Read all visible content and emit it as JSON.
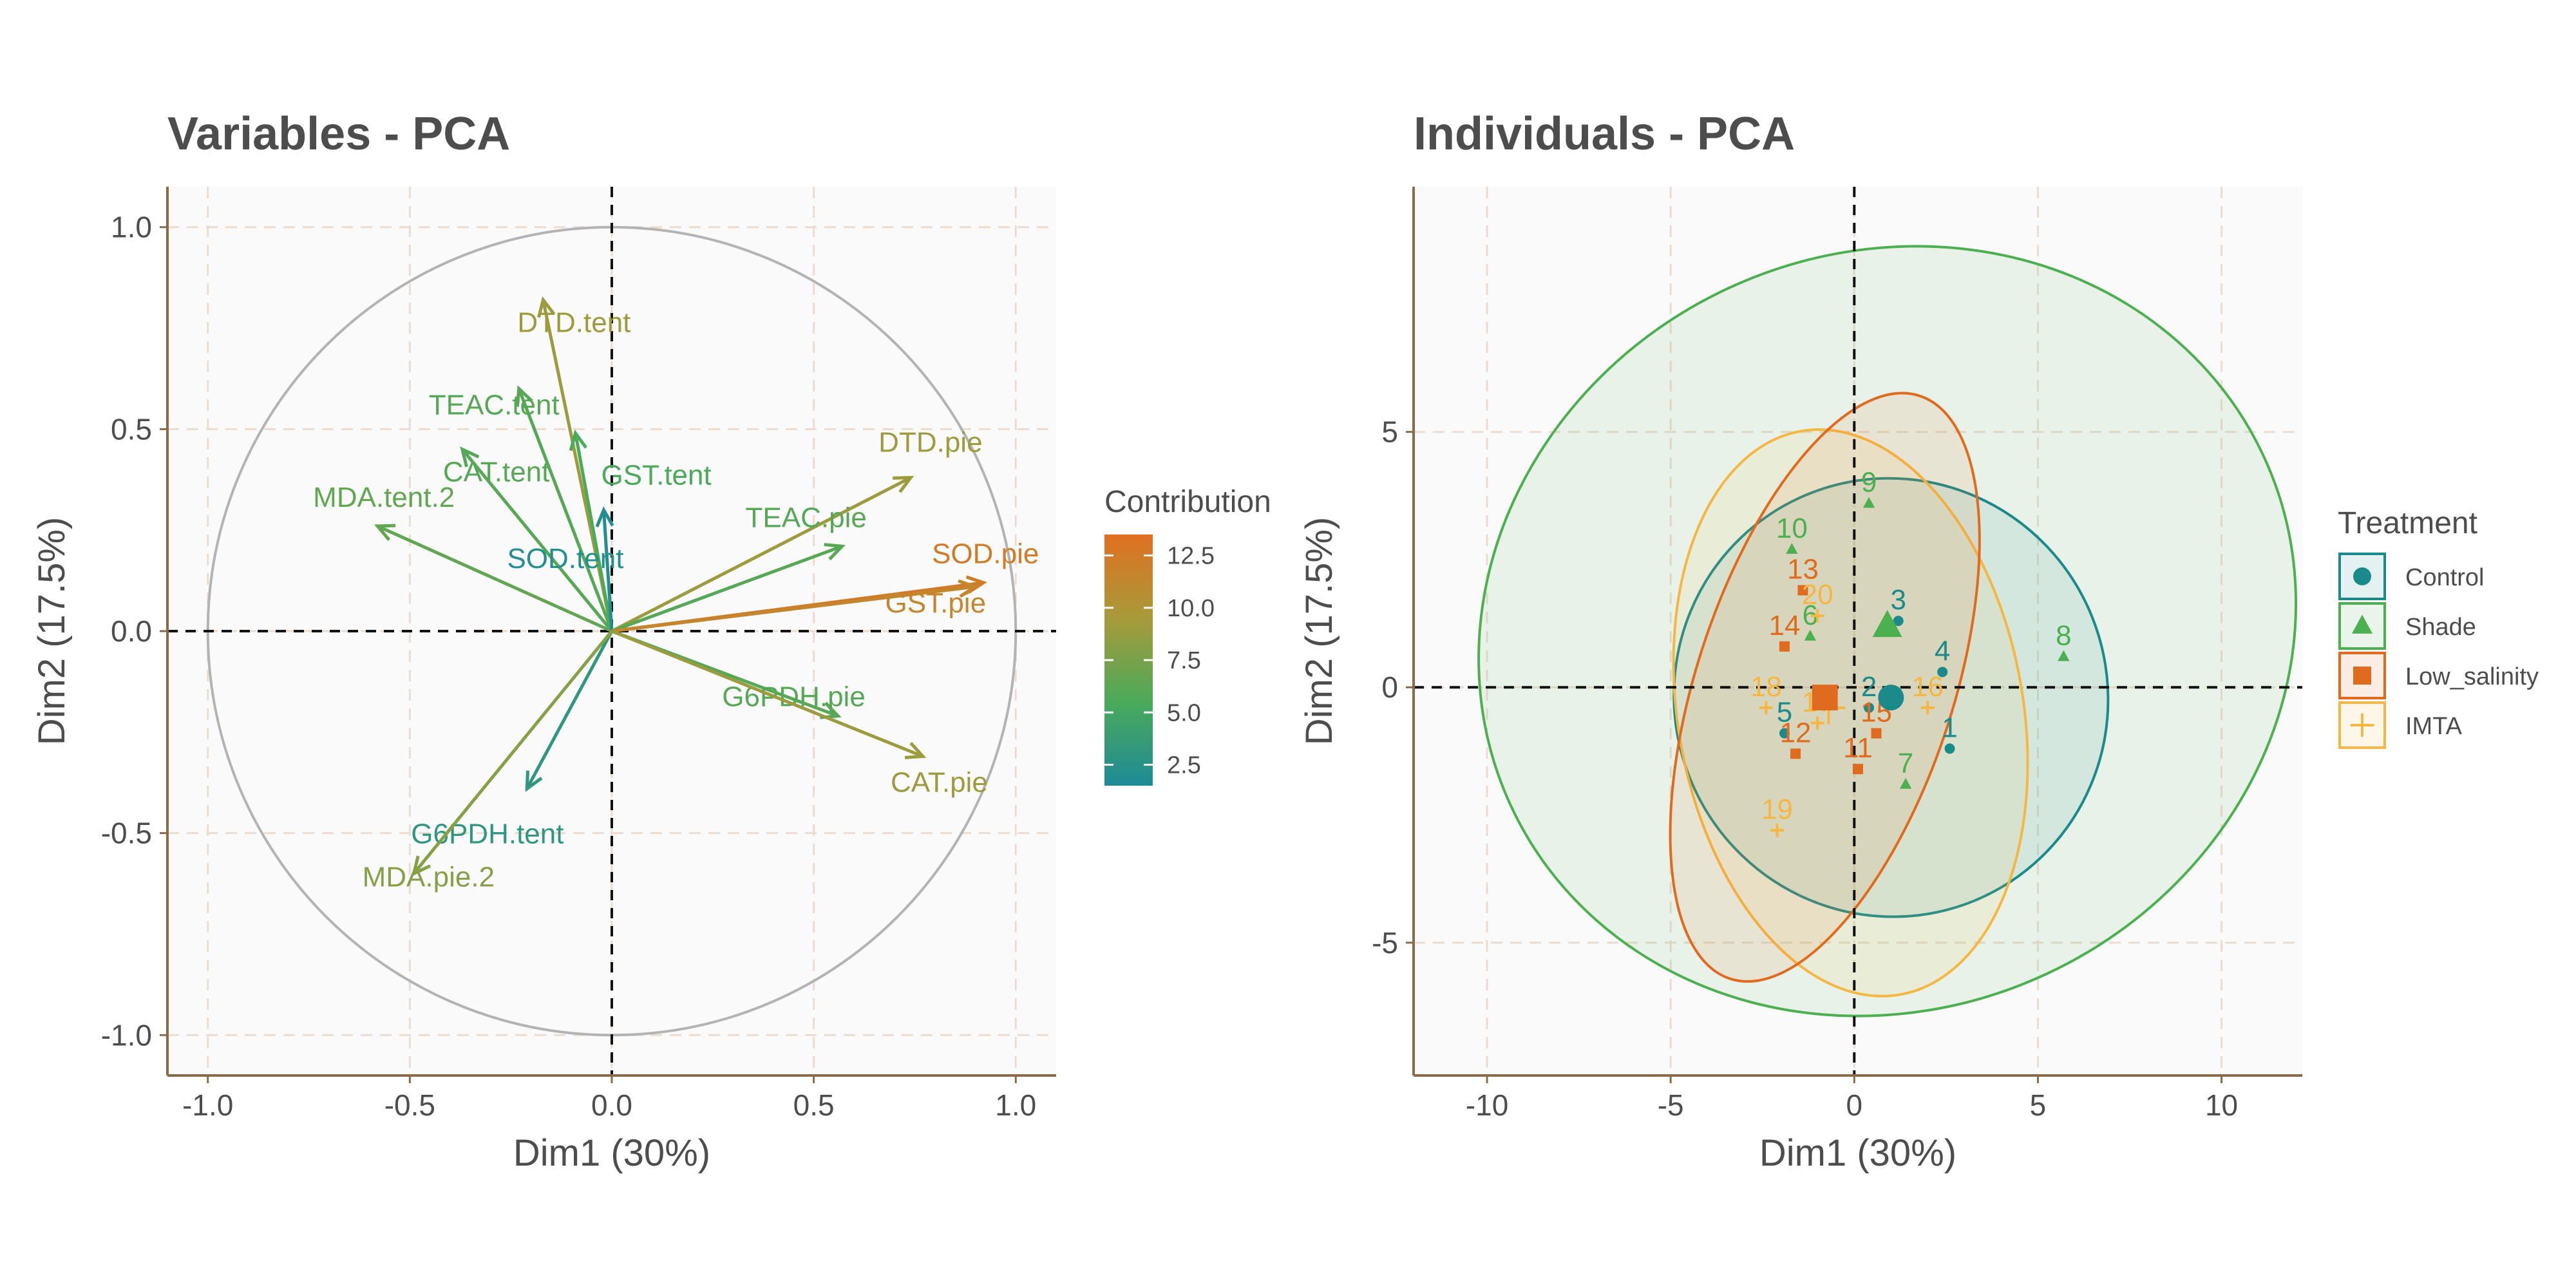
{
  "chart_data": [
    {
      "type": "scatter",
      "subtype": "pca-variables",
      "title": "Variables - PCA",
      "xlabel": "Dim1 (30%)",
      "ylabel": "Dim2 (17.5%)",
      "xlim": [
        -1.1,
        1.1
      ],
      "ylim": [
        -1.1,
        1.1
      ],
      "x_ticks": [
        -1.0,
        -0.5,
        0.0,
        0.5,
        1.0
      ],
      "x_tick_labels": [
        "-1.0",
        "-0.5",
        "0.0",
        "0.5",
        "1.0"
      ],
      "y_ticks": [
        -1.0,
        -0.5,
        0.0,
        0.5,
        1.0
      ],
      "y_tick_labels": [
        "-1.0",
        "-0.5",
        "0.0",
        "0.5",
        "1.0"
      ],
      "grid": true,
      "correlation_circle": true,
      "legend": {
        "title": "Contribution",
        "type": "gradient",
        "position": "right",
        "range": [
          1.5,
          13.5
        ],
        "breaks": [
          2.5,
          5.0,
          7.5,
          10.0,
          12.5
        ],
        "break_labels": [
          "2.5",
          "5.0",
          "7.5",
          "10.0",
          "12.5"
        ],
        "colors": [
          "#1e8a96",
          "#4aaa5a",
          "#a89a3a",
          "#e07020"
        ]
      },
      "variables": [
        {
          "name": "DTD.tent",
          "x": -0.17,
          "y": 0.82,
          "contrib": 9.0
        },
        {
          "name": "TEAC.tent",
          "x": -0.23,
          "y": 0.6,
          "contrib": 6.0
        },
        {
          "name": "GST.tent",
          "x": -0.09,
          "y": 0.49,
          "contrib": 5.5
        },
        {
          "name": "CAT.tent",
          "x": -0.37,
          "y": 0.45,
          "contrib": 6.0
        },
        {
          "name": "MDA.tent.2",
          "x": -0.58,
          "y": 0.26,
          "contrib": 6.5
        },
        {
          "name": "SOD.tent",
          "x": -0.02,
          "y": 0.3,
          "contrib": 2.0
        },
        {
          "name": "DTD.pie",
          "x": 0.74,
          "y": 0.38,
          "contrib": 9.0
        },
        {
          "name": "TEAC.pie",
          "x": 0.57,
          "y": 0.21,
          "contrib": 6.0
        },
        {
          "name": "SOD.pie",
          "x": 0.92,
          "y": 0.12,
          "contrib": 12.5
        },
        {
          "name": "GST.pie",
          "x": 0.9,
          "y": 0.11,
          "contrib": 11.5
        },
        {
          "name": "G6PDH.pie",
          "x": 0.56,
          "y": -0.21,
          "contrib": 6.0
        },
        {
          "name": "CAT.pie",
          "x": 0.77,
          "y": -0.31,
          "contrib": 9.0
        },
        {
          "name": "G6PDH.tent",
          "x": -0.21,
          "y": -0.39,
          "contrib": 3.0
        },
        {
          "name": "MDA.pie.2",
          "x": -0.49,
          "y": -0.6,
          "contrib": 8.0
        }
      ]
    },
    {
      "type": "scatter",
      "subtype": "pca-individuals",
      "title": "Individuals - PCA",
      "xlabel": "Dim1 (30%)",
      "ylabel": "Dim2 (17.5%)",
      "xlim": [
        -12,
        12.2
      ],
      "ylim": [
        -7.6,
        9.8
      ],
      "x_ticks": [
        -10,
        -5,
        0,
        5,
        10
      ],
      "x_tick_labels": [
        "-10",
        "-5",
        "0",
        "5",
        "10"
      ],
      "y_ticks": [
        -5,
        0,
        5
      ],
      "y_tick_labels": [
        "-5",
        "0",
        "5"
      ],
      "grid": true,
      "legend": {
        "title": "Treatment",
        "position": "right",
        "entries": [
          {
            "name": "Control",
            "color": "#1a8a8a",
            "shape": "circle"
          },
          {
            "name": "Shade",
            "color": "#4cb050",
            "shape": "triangle"
          },
          {
            "name": "Low_salinity",
            "color": "#e06a1e",
            "shape": "square"
          },
          {
            "name": "IMTA",
            "color": "#f5b642",
            "shape": "cross"
          }
        ]
      },
      "ellipses": [
        {
          "group": "Shade",
          "cx": 0.9,
          "cy": 1.1,
          "rx": 11.3,
          "ry": 7.4,
          "angle_deg": -25
        },
        {
          "group": "Control",
          "cx": 1.0,
          "cy": -0.2,
          "rx": 5.9,
          "ry": 4.3,
          "angle_deg": -22
        },
        {
          "group": "IMTA",
          "cx": -0.1,
          "cy": -0.5,
          "rx": 4.7,
          "ry": 5.6,
          "angle_deg": -10
        },
        {
          "group": "Low_salinity",
          "cx": -0.8,
          "cy": 0.0,
          "rx": 3.5,
          "ry": 6.0,
          "angle_deg": 18
        }
      ],
      "centroids": [
        {
          "group": "Shade",
          "x": 0.9,
          "y": 1.2
        },
        {
          "group": "Control",
          "x": 1.0,
          "y": -0.2
        },
        {
          "group": "IMTA",
          "x": -0.7,
          "y": -0.4
        },
        {
          "group": "Low_salinity",
          "x": -0.8,
          "y": -0.2
        }
      ],
      "points": [
        {
          "label": "1",
          "group": "Control",
          "x": 2.6,
          "y": -1.2
        },
        {
          "label": "2",
          "group": "Control",
          "x": 0.4,
          "y": -0.4
        },
        {
          "label": "3",
          "group": "Control",
          "x": 1.2,
          "y": 1.3
        },
        {
          "label": "4",
          "group": "Control",
          "x": 2.4,
          "y": 0.3
        },
        {
          "label": "5",
          "group": "Control",
          "x": -1.9,
          "y": -0.9
        },
        {
          "label": "6",
          "group": "Shade",
          "x": -1.2,
          "y": 1.0
        },
        {
          "label": "7",
          "group": "Shade",
          "x": 1.4,
          "y": -1.9
        },
        {
          "label": "8",
          "group": "Shade",
          "x": 5.7,
          "y": 0.6
        },
        {
          "label": "9",
          "group": "Shade",
          "x": 0.4,
          "y": 3.6
        },
        {
          "label": "10",
          "group": "Shade",
          "x": -1.7,
          "y": 2.7
        },
        {
          "label": "11",
          "group": "Low_salinity",
          "x": 0.1,
          "y": -1.6
        },
        {
          "label": "12",
          "group": "Low_salinity",
          "x": -1.6,
          "y": -1.3
        },
        {
          "label": "13",
          "group": "Low_salinity",
          "x": -1.4,
          "y": 1.9
        },
        {
          "label": "14",
          "group": "Low_salinity",
          "x": -1.9,
          "y": 0.8
        },
        {
          "label": "15",
          "group": "Low_salinity",
          "x": 0.6,
          "y": -0.9
        },
        {
          "label": "16",
          "group": "IMTA",
          "x": 2.0,
          "y": -0.4
        },
        {
          "label": "17",
          "group": "IMTA",
          "x": -1.0,
          "y": -0.7
        },
        {
          "label": "18",
          "group": "IMTA",
          "x": -2.4,
          "y": -0.4
        },
        {
          "label": "19",
          "group": "IMTA",
          "x": -2.1,
          "y": -2.8
        },
        {
          "label": "20",
          "group": "IMTA",
          "x": -1.0,
          "y": 1.4
        }
      ]
    }
  ]
}
